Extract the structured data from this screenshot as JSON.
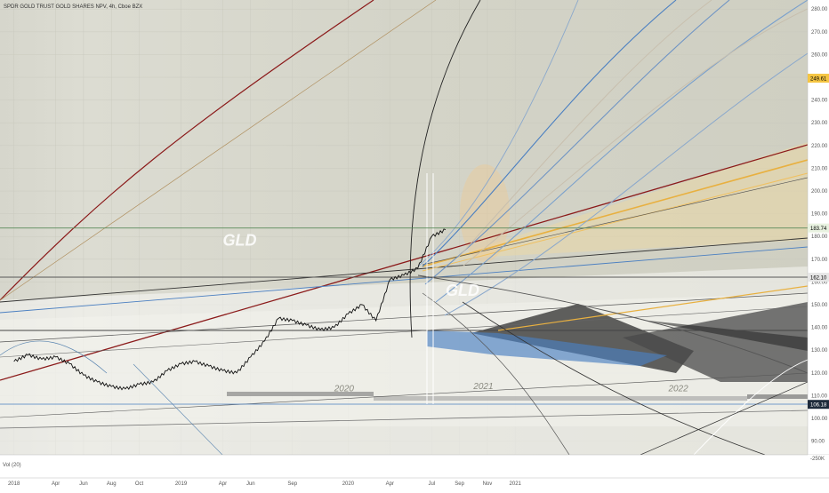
{
  "header": {
    "title": "SPDR GOLD TRUST GOLD SHARES NPV, 4h, Cboe BZX"
  },
  "volume": {
    "label": "Vol (20)",
    "scale_label": "-250K"
  },
  "watermarks": [
    {
      "text": "GLD",
      "x": "2019-04",
      "y": 176
    },
    {
      "text": "GLD",
      "x": "2020-08",
      "y": 154
    }
  ],
  "region_labels": [
    {
      "text": "2020",
      "x": "2019-12",
      "y": 112
    },
    {
      "text": "2021",
      "x": "2020-10",
      "y": 113
    },
    {
      "text": "2022",
      "x": "2021-12",
      "y": 112
    }
  ],
  "price_tags": [
    {
      "value": "249.61",
      "price": 249.61,
      "color": "#f5c542",
      "text_color": "#000000"
    },
    {
      "value": "183.74",
      "price": 183.74,
      "color": "#e8f2e0",
      "text_color": "#000000"
    },
    {
      "value": "162.10",
      "price": 162.1,
      "color": "#e6e6e6",
      "text_color": "#000000"
    },
    {
      "value": "106.18",
      "price": 106.18,
      "color": "#1e2a3a",
      "text_color": "#ffffff"
    }
  ],
  "colors": {
    "background": "#d8d8cc",
    "grid": "#c8c8bc",
    "price": "#111111",
    "accent_red": "#8b1a1a",
    "accent_blue": "#4a7fc1",
    "accent_orange": "#f0b040",
    "horizontal_green": "#5a8a5a"
  },
  "chart_data": {
    "type": "line",
    "series": [
      {
        "x": [
          "2018-01",
          "2018-02",
          "2018-03",
          "2018-04",
          "2018-05",
          "2018-06",
          "2018-07",
          "2018-08",
          "2018-09",
          "2018-10",
          "2018-11",
          "2018-12",
          "2019-01",
          "2019-02",
          "2019-03",
          "2019-04",
          "2019-05",
          "2019-06",
          "2019-07",
          "2019-08",
          "2019-09",
          "2019-10",
          "2019-11",
          "2019-12",
          "2020-01",
          "2020-02",
          "2020-03",
          "2020-04",
          "2020-05",
          "2020-06",
          "2020-07",
          "2020-08"
        ],
        "values": [
          125,
          128,
          126,
          127,
          124,
          119,
          116,
          114,
          113,
          115,
          116,
          121,
          124,
          125,
          123,
          121,
          120,
          127,
          134,
          144,
          143,
          141,
          139,
          140,
          146,
          150,
          143,
          161,
          163,
          166,
          180,
          183
        ]
      }
    ],
    "x_ticks": [
      "2018",
      "Apr",
      "Jun",
      "Aug",
      "Oct",
      "2019",
      "Apr",
      "Jun",
      "Sep",
      "2020",
      "Apr",
      "Jul",
      "Sep",
      "Nov",
      "2021"
    ],
    "x_tick_dates": [
      "2018-01",
      "2018-04",
      "2018-06",
      "2018-08",
      "2018-10",
      "2019-01",
      "2019-04",
      "2019-06",
      "2019-09",
      "2020-01",
      "2020-04",
      "2020-07",
      "2020-09",
      "2020-11",
      "2021-01"
    ],
    "y_ticks": [
      90,
      100,
      110,
      120,
      130,
      140,
      150,
      160,
      170,
      180,
      190,
      200,
      210,
      220,
      230,
      240,
      250,
      260,
      270,
      280
    ],
    "y_tick_labels": [
      "90.00",
      "100.00",
      "110.00",
      "120.00",
      "130.00",
      "140.00",
      "150.00",
      "160.00",
      "170.00",
      "180.00",
      "190.00",
      "200.00",
      "210.00",
      "220.00",
      "230.00",
      "240.00",
      "250.00",
      "260.00",
      "270.00",
      "280.00"
    ],
    "ylim": [
      84,
      284
    ],
    "xlim": [
      "2017-12",
      "2022-10"
    ],
    "horizontal_lines": [
      {
        "price": 183.74,
        "color": "#5a8a5a"
      },
      {
        "price": 162.1,
        "color": "#555555"
      }
    ],
    "grid": true
  }
}
